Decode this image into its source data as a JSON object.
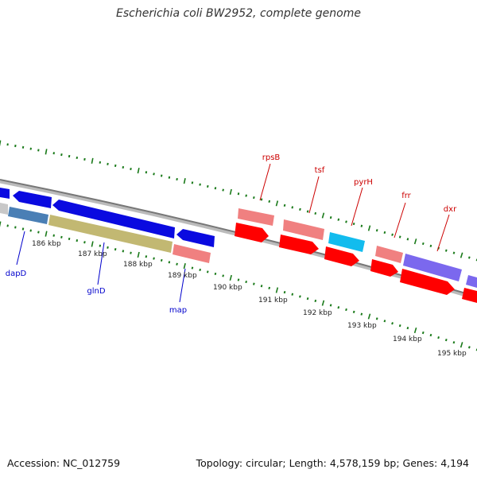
{
  "title": "Escherichia coli BW2952, complete genome",
  "footer": {
    "accession": "Accession: NC_012759",
    "stats": "Topology: circular; Length: 4,578,159 bp; Genes: 4,194"
  },
  "colors": {
    "backbone": "#8c8c8c",
    "tick": "#1a7a1a",
    "label_blue": "#0000cc",
    "label_red": "#cc0000",
    "gene_blue": "#0a0ae0",
    "gene_red": "#ff0000",
    "gene_pink": "#f08080",
    "gene_cyan": "#12bcee",
    "gene_olive": "#c2b872",
    "gene_steel": "#4a7fb5",
    "gene_purple": "#7b68ee",
    "gene_grey": "#c8c8c8"
  },
  "kbp_labels": [
    "186 kbp",
    "187 kbp",
    "188 kbp",
    "189 kbp",
    "190 kbp",
    "191 kbp",
    "192 kbp",
    "193 kbp",
    "194 kbp",
    "195 kbp"
  ],
  "gene_labels": {
    "dapD": "dapD",
    "glnD": "glnD",
    "map": "map",
    "rpsB": "rpsB",
    "tsf": "tsf",
    "pyrH": "pyrH",
    "frr": "frr",
    "dxr": "dxr"
  }
}
